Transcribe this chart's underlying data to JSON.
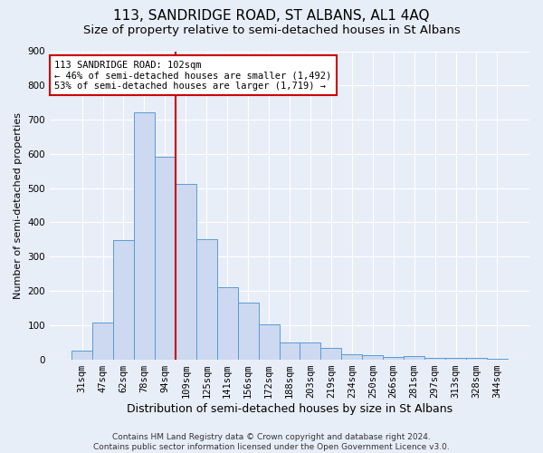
{
  "title": "113, SANDRIDGE ROAD, ST ALBANS, AL1 4AQ",
  "subtitle": "Size of property relative to semi-detached houses in St Albans",
  "xlabel": "Distribution of semi-detached houses by size in St Albans",
  "ylabel": "Number of semi-detached properties",
  "categories": [
    "31sqm",
    "47sqm",
    "62sqm",
    "78sqm",
    "94sqm",
    "109sqm",
    "125sqm",
    "141sqm",
    "156sqm",
    "172sqm",
    "188sqm",
    "203sqm",
    "219sqm",
    "234sqm",
    "250sqm",
    "266sqm",
    "281sqm",
    "297sqm",
    "313sqm",
    "328sqm",
    "344sqm"
  ],
  "values": [
    25,
    108,
    348,
    722,
    592,
    513,
    352,
    210,
    165,
    103,
    50,
    50,
    32,
    15,
    12,
    8,
    10,
    5,
    5,
    3,
    2
  ],
  "bar_color": "#ccd9f0",
  "bar_edge_color": "#5b9bd5",
  "vline_color": "#cc0000",
  "ylim": [
    0,
    900
  ],
  "yticks": [
    0,
    100,
    200,
    300,
    400,
    500,
    600,
    700,
    800,
    900
  ],
  "annotation_text": "113 SANDRIDGE ROAD: 102sqm\n← 46% of semi-detached houses are smaller (1,492)\n53% of semi-detached houses are larger (1,719) →",
  "annotation_box_color": "#ffffff",
  "annotation_box_edge": "#cc0000",
  "footer_text": "Contains HM Land Registry data © Crown copyright and database right 2024.\nContains public sector information licensed under the Open Government Licence v3.0.",
  "background_color": "#e8eef8",
  "grid_color": "#ffffff",
  "title_fontsize": 11,
  "subtitle_fontsize": 9.5,
  "xlabel_fontsize": 9,
  "ylabel_fontsize": 8,
  "tick_fontsize": 7.5,
  "footer_fontsize": 6.5,
  "annot_fontsize": 7.5
}
